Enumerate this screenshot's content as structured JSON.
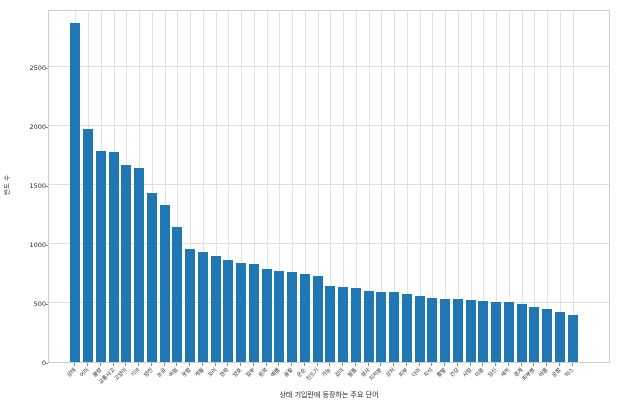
{
  "figure": {
    "ylabel": "빈도 수",
    "xlabel": "상태 기입란에 등장하는 주요 단어",
    "bar_color": "#1f77b4",
    "grid_color": "#dedede",
    "spine_color": "#cccccc",
    "background_color": "#ffffff"
  },
  "chart_data": {
    "type": "bar",
    "title": "",
    "xlabel": "상태 기입란에 등장하는 주요 단어",
    "ylabel": "빈도 수",
    "ylim": [
      0,
      2990
    ],
    "yticks": [
      0,
      500,
      1000,
      1500,
      2000,
      2500
    ],
    "grid": true,
    "legend": null,
    "categories": [
      "상태",
      "어미",
      "불량",
      "교통사고",
      "고양이",
      "기아",
      "얌전",
      "눈곱",
      "여윔",
      "못함",
      "개월",
      "꼬리",
      "한쪽",
      "양호",
      "일부",
      "왼쪽",
      "예쁨",
      "골절",
      "온순",
      "진드기",
      "가능",
      "겁이",
      "발톱",
      "설사",
      "지저분",
      "상처",
      "피부",
      "다리",
      "치석",
      "활발",
      "건강",
      "사람",
      "미용",
      "임신",
      "새끼",
      "경계",
      "피부병",
      "마름",
      "순함",
      "믹스"
    ],
    "values": [
      2870,
      1970,
      1790,
      1780,
      1670,
      1640,
      1430,
      1330,
      1140,
      960,
      930,
      900,
      865,
      835,
      830,
      785,
      775,
      760,
      745,
      730,
      640,
      635,
      625,
      605,
      595,
      590,
      580,
      560,
      540,
      530,
      530,
      525,
      520,
      510,
      505,
      495,
      470,
      450,
      420,
      400
    ]
  }
}
